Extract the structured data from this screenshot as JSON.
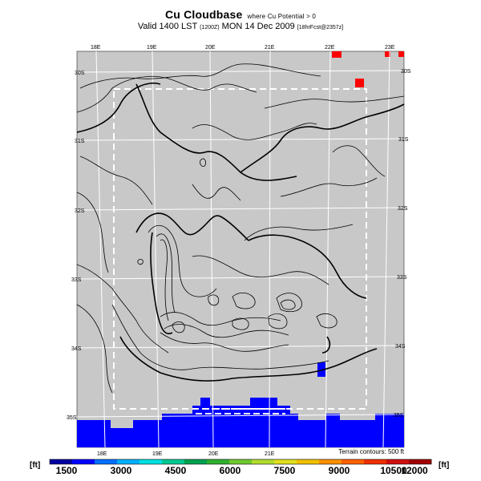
{
  "header": {
    "title": "Cu Cloudbase",
    "title_suffix": "where Cu Potential > 0",
    "valid_line": "Valid 1400 LST",
    "valid_time_code": "(1200Z)",
    "valid_date": "MON 14 Dec 2009",
    "run_info": "[18hrFcst@2357z]"
  },
  "map": {
    "lon_labels_top": [
      "18E",
      "19E",
      "20E",
      "21E",
      "22E",
      "23E"
    ],
    "lon_labels_bottom": [
      "18E",
      "19E",
      "20E",
      "21E"
    ],
    "lat_labels_left": [
      "30S",
      "31S",
      "32S",
      "33S",
      "34S",
      "35S"
    ],
    "lat_labels_right": [
      "30S",
      "31S",
      "32S",
      "33S",
      "34S",
      "35S"
    ],
    "background_color": "#c8c8c8",
    "ocean_color": "#0000ff",
    "cloudbase_red": "#ff0000",
    "terrain_contour_note": "Terrain contours: 500 ft"
  },
  "colorbar": {
    "unit_left": "[ft]",
    "unit_right": "[ft]",
    "tick_labels": [
      "1500",
      "3000",
      "4500",
      "6000",
      "7500",
      "9000",
      "10500",
      "12000"
    ],
    "colors": [
      "#0000a0",
      "#0000ff",
      "#0070ff",
      "#00b0ff",
      "#00e0e0",
      "#00c890",
      "#00a050",
      "#30b030",
      "#70c830",
      "#b0dc30",
      "#e0e020",
      "#f0c000",
      "#ff9000",
      "#ff6000",
      "#f03000",
      "#d01010",
      "#a00000"
    ]
  }
}
